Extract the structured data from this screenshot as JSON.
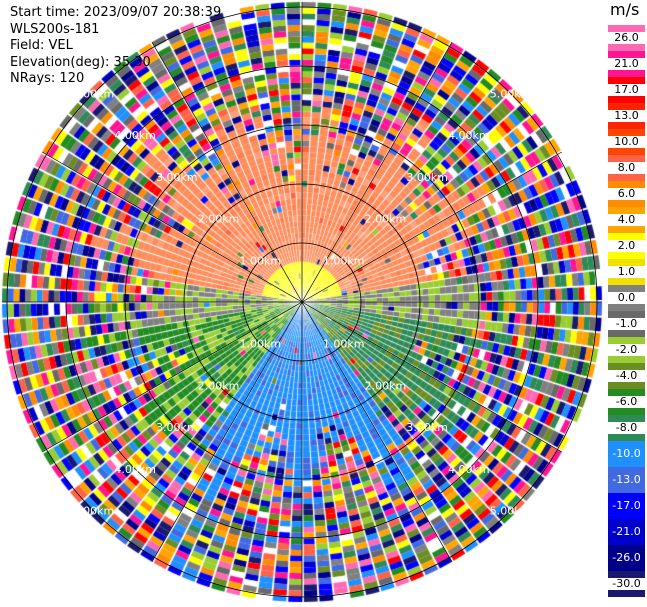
{
  "header": {
    "start_time": "Start time: 2023/09/07 20:38:39",
    "instrument": "WLS200s-181",
    "field": "Field: VEL",
    "elevation": "Elevation(deg): 35.30",
    "nrays": "NRays: 120"
  },
  "colorbar": {
    "unit": "m/s",
    "levels": [
      "26.0",
      "21.0",
      "17.0",
      "13.0",
      "10.0",
      "8.0",
      "6.0",
      "4.0",
      "2.0",
      "1.0",
      "0.0",
      "-1.0",
      "-2.0",
      "-4.0",
      "-6.0",
      "-8.0",
      "-10.0",
      "-13.0",
      "-17.0",
      "-21.0",
      "-26.0",
      "-30.0"
    ],
    "colors": [
      "#ff69b4",
      "#ff1493",
      "#ff0000",
      "#ff2400",
      "#ff4500",
      "#ff6347",
      "#ff8c00",
      "#ffa500",
      "#ffff00",
      "#f0e000",
      "#808080",
      "#696969",
      "#9acd32",
      "#6b8e23",
      "#228b22",
      "#2e8b57",
      "#1e90ff",
      "#4169e1",
      "#0000ff",
      "#0000cd",
      "#00008b",
      "#191970"
    ]
  },
  "range_rings": {
    "labels": [
      "1.00km",
      "2.00km",
      "3.00km",
      "4.00km",
      "5.00km"
    ]
  }
}
